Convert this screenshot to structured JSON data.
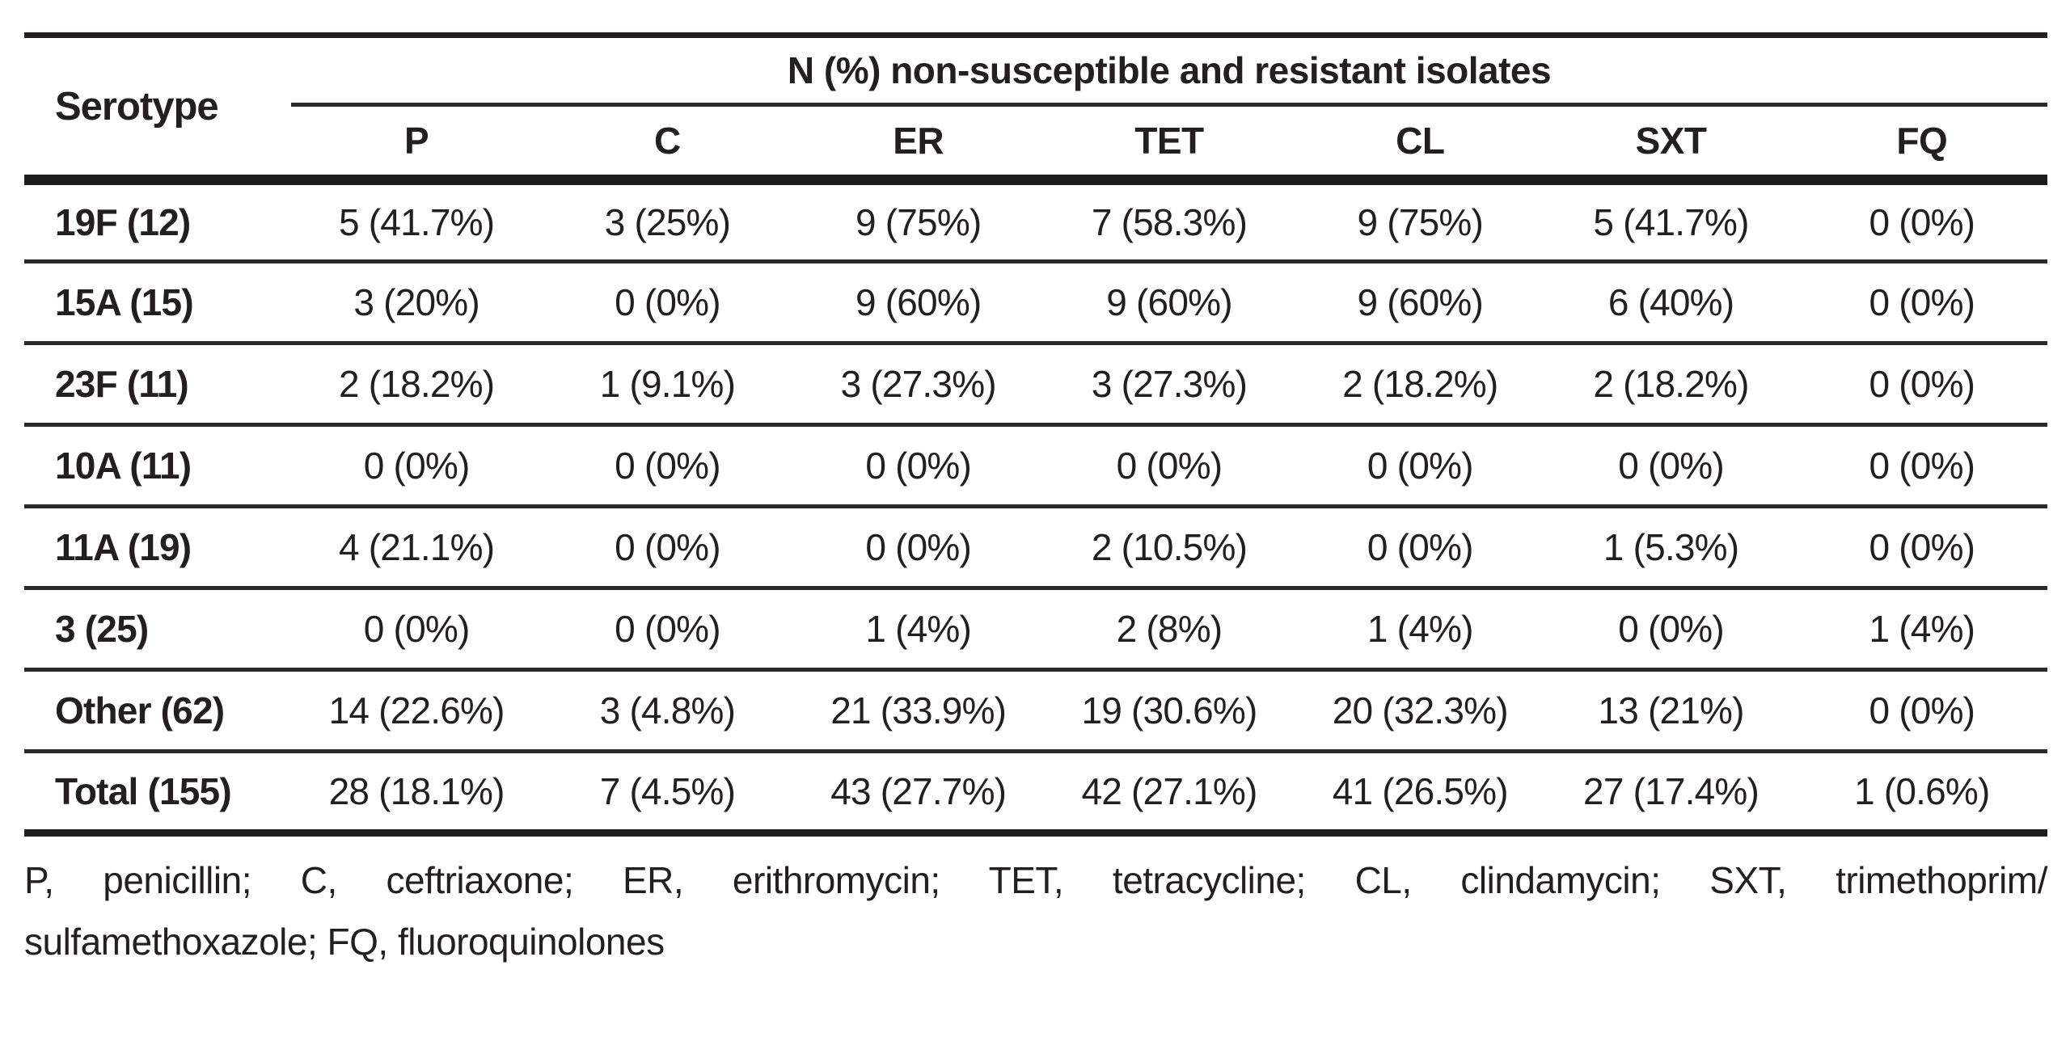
{
  "table": {
    "row_header_label": "Serotype",
    "group_header": "N (%) non-susceptible and resistant isolates",
    "columns": [
      "P",
      "C",
      "ER",
      "TET",
      "CL",
      "SXT",
      "FQ"
    ],
    "rows": [
      {
        "serotype": "19F (12)",
        "values": [
          "5 (41.7%)",
          "3 (25%)",
          "9 (75%)",
          "7 (58.3%)",
          "9 (75%)",
          "5 (41.7%)",
          "0 (0%)"
        ]
      },
      {
        "serotype": "15A (15)",
        "values": [
          "3 (20%)",
          "0 (0%)",
          "9 (60%)",
          "9 (60%)",
          "9 (60%)",
          "6 (40%)",
          "0 (0%)"
        ]
      },
      {
        "serotype": "23F (11)",
        "values": [
          "2 (18.2%)",
          "1 (9.1%)",
          "3 (27.3%)",
          "3 (27.3%)",
          "2 (18.2%)",
          "2 (18.2%)",
          "0 (0%)"
        ]
      },
      {
        "serotype": "10A (11)",
        "values": [
          "0 (0%)",
          "0 (0%)",
          "0 (0%)",
          "0 (0%)",
          "0 (0%)",
          "0 (0%)",
          "0 (0%)"
        ]
      },
      {
        "serotype": "11A (19)",
        "values": [
          "4 (21.1%)",
          "0 (0%)",
          "0 (0%)",
          "2 (10.5%)",
          "0 (0%)",
          "1 (5.3%)",
          "0 (0%)"
        ]
      },
      {
        "serotype": "3 (25)",
        "values": [
          "0 (0%)",
          "0 (0%)",
          "1 (4%)",
          "2 (8%)",
          "1 (4%)",
          "0 (0%)",
          "1 (4%)"
        ]
      },
      {
        "serotype": "Other (62)",
        "values": [
          "14 (22.6%)",
          "3 (4.8%)",
          "21 (33.9%)",
          "19 (30.6%)",
          "20 (32.3%)",
          "13 (21%)",
          "0 (0%)"
        ]
      },
      {
        "serotype": "Total (155)",
        "values": [
          "28 (18.1%)",
          "7 (4.5%)",
          "43 (27.7%)",
          "42 (27.1%)",
          "41 (26.5%)",
          "27 (17.4%)",
          "1 (0.6%)"
        ]
      }
    ]
  },
  "footnote": {
    "line1": "P, penicillin; C, ceftriaxone; ER, erithromycin; TET, tetracycline; CL, clindamycin; SXT, trimethoprim/",
    "line2": "sulfamethoxazole; FQ, fluoroquinolones"
  },
  "colors": {
    "text": "#231f20",
    "rule": "#231f20",
    "background": "#ffffff"
  }
}
